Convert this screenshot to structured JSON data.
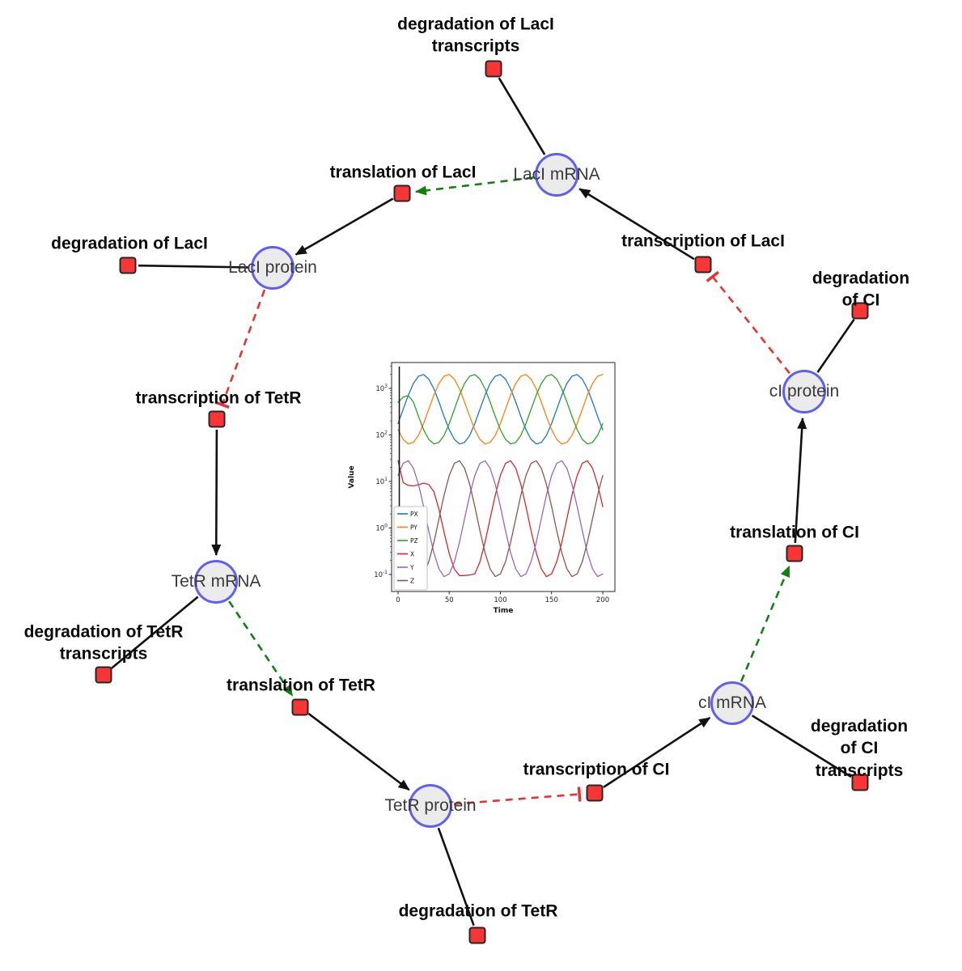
{
  "diagram": {
    "species": [
      {
        "id": "laci_mrna",
        "label": "LacI mRNA"
      },
      {
        "id": "laci_protein",
        "label": "LacI protein"
      },
      {
        "id": "tetr_mrna",
        "label": "TetR mRNA"
      },
      {
        "id": "tetr_protein",
        "label": "TetR protein"
      },
      {
        "id": "ci_mrna",
        "label": "cI mRNA"
      },
      {
        "id": "ci_protein",
        "label": "cI protein"
      }
    ],
    "reactions": [
      {
        "id": "deg_laci_tx",
        "label": "degradation of LacI\ntranscripts"
      },
      {
        "id": "transl_laci",
        "label": "translation of LacI"
      },
      {
        "id": "deg_laci",
        "label": "degradation of LacI"
      },
      {
        "id": "txn_laci",
        "label": "transcription of LacI"
      },
      {
        "id": "deg_ci",
        "label": "degradation of CI"
      },
      {
        "id": "txn_tetr",
        "label": "transcription of TetR"
      },
      {
        "id": "transl_ci",
        "label": "translation of CI"
      },
      {
        "id": "deg_tetr_tx",
        "label": "degradation of TetR\ntranscripts"
      },
      {
        "id": "transl_tetr",
        "label": "translation of TetR"
      },
      {
        "id": "txn_ci",
        "label": "transcription of CI"
      },
      {
        "id": "deg_ci_tx",
        "label": "degradation of CI\ntranscripts"
      },
      {
        "id": "deg_tetr",
        "label": "degradation of TetR"
      }
    ],
    "edges": [
      {
        "from": "laci_mrna",
        "to": "deg_laci_tx",
        "type": "consumption"
      },
      {
        "from": "laci_mrna",
        "to": "transl_laci",
        "type": "modifier"
      },
      {
        "from": "transl_laci",
        "to": "laci_protein",
        "type": "production"
      },
      {
        "from": "laci_protein",
        "to": "deg_laci",
        "type": "consumption"
      },
      {
        "from": "laci_protein",
        "to": "txn_tetr",
        "type": "inhibition"
      },
      {
        "from": "txn_tetr",
        "to": "tetr_mrna",
        "type": "production"
      },
      {
        "from": "tetr_mrna",
        "to": "deg_tetr_tx",
        "type": "consumption"
      },
      {
        "from": "tetr_mrna",
        "to": "transl_tetr",
        "type": "modifier"
      },
      {
        "from": "transl_tetr",
        "to": "tetr_protein",
        "type": "production"
      },
      {
        "from": "tetr_protein",
        "to": "deg_tetr",
        "type": "consumption"
      },
      {
        "from": "tetr_protein",
        "to": "txn_ci",
        "type": "inhibition"
      },
      {
        "from": "txn_ci",
        "to": "ci_mrna",
        "type": "production"
      },
      {
        "from": "ci_mrna",
        "to": "deg_ci_tx",
        "type": "consumption"
      },
      {
        "from": "ci_mrna",
        "to": "transl_ci",
        "type": "modifier"
      },
      {
        "from": "transl_ci",
        "to": "ci_protein",
        "type": "production"
      },
      {
        "from": "ci_protein",
        "to": "deg_ci",
        "type": "consumption"
      },
      {
        "from": "ci_protein",
        "to": "txn_laci",
        "type": "inhibition"
      },
      {
        "from": "txn_laci",
        "to": "laci_mrna",
        "type": "production"
      }
    ],
    "colors": {
      "species_fill": "#ebebeb",
      "species_stroke": "#6060ef",
      "reaction_fill": "#fa3535",
      "reaction_stroke": "#262626",
      "edge": "#111111",
      "modifier": "#157f15",
      "inhibition": "#e23434"
    }
  },
  "chart_data": {
    "type": "line",
    "title": "",
    "xlabel": "Time",
    "ylabel": "Value",
    "xlim": [
      0,
      200
    ],
    "ylog": true,
    "x_ticks": [
      0,
      50,
      100,
      150,
      200
    ],
    "y_ticks": [
      "10^-1",
      "10^0",
      "10^1",
      "10^2",
      "10^3"
    ],
    "legend_position": "lower left",
    "vline_x": 1.2,
    "x": [
      0,
      5,
      10,
      15,
      20,
      25,
      30,
      35,
      40,
      45,
      50,
      55,
      60,
      65,
      70,
      75,
      80,
      85,
      90,
      95,
      100,
      105,
      110,
      115,
      120,
      125,
      130,
      135,
      140,
      145,
      150,
      155,
      160,
      165,
      170,
      175,
      180,
      185,
      190,
      195,
      200
    ],
    "series": [
      {
        "name": "PX",
        "color": "#1f77b4",
        "values": [
          176,
          355,
          716,
          1279,
          1832,
          1977,
          1584,
          979,
          508,
          248,
          129,
          80,
          64,
          69,
          98,
          176,
          355,
          716,
          1279,
          1832,
          1977,
          1584,
          979,
          508,
          248,
          129,
          80,
          64,
          69,
          98,
          176,
          355,
          716,
          1279,
          1832,
          1977,
          1584,
          979,
          508,
          248,
          129
        ]
      },
      {
        "name": "PY",
        "color": "#ff7f0e",
        "values": [
          129,
          80,
          64,
          69,
          98,
          176,
          355,
          716,
          1279,
          1832,
          1977,
          1584,
          979,
          508,
          248,
          129,
          80,
          64,
          69,
          98,
          176,
          355,
          716,
          1279,
          1832,
          1977,
          1584,
          979,
          508,
          248,
          129,
          80,
          64,
          69,
          98,
          176,
          355,
          716,
          1279,
          1832,
          1977
        ]
      },
      {
        "name": "PZ",
        "color": "#2ca02c",
        "values": [
          500,
          650,
          700,
          508,
          248,
          129,
          80,
          64,
          69,
          98,
          176,
          355,
          716,
          1279,
          1832,
          1977,
          1584,
          979,
          508,
          248,
          129,
          80,
          64,
          69,
          98,
          176,
          355,
          716,
          1279,
          1832,
          1977,
          1584,
          979,
          508,
          248,
          129,
          80,
          64,
          69,
          98,
          176
        ]
      },
      {
        "name": "X",
        "color": "#d62728",
        "values": [
          28,
          9.5,
          8.2,
          8,
          8.5,
          9.2,
          8.6,
          6,
          2.5,
          0.8,
          0.28,
          0.13,
          0.095,
          0.095,
          0.098,
          0.103,
          0.187,
          0.491,
          1.59,
          5.12,
          13.5,
          24.5,
          27.8,
          19.2,
          8.61,
          2.88,
          0.871,
          0.292,
          0.131,
          0.09,
          0.103,
          0.187,
          0.491,
          1.59,
          5.12,
          13.5,
          24.5,
          27.8,
          19.2,
          8.61,
          2.88
        ]
      },
      {
        "name": "Y",
        "color": "#9467bd",
        "values": [
          13.5,
          24.5,
          27.8,
          19.2,
          8.61,
          2.88,
          0.871,
          0.292,
          0.131,
          0.09,
          0.103,
          0.187,
          0.491,
          1.59,
          5.12,
          13.5,
          24.5,
          27.8,
          19.2,
          8.61,
          2.88,
          0.871,
          0.292,
          0.131,
          0.09,
          0.103,
          0.187,
          0.491,
          1.59,
          5.12,
          13.5,
          24.5,
          27.8,
          19.2,
          8.61,
          2.88,
          0.871,
          0.292,
          0.131,
          0.09,
          0.103
        ]
      },
      {
        "name": "Z",
        "color": "#8c564b",
        "values": [
          2.88,
          0.871,
          0.292,
          0.131,
          0.09,
          0.103,
          0.187,
          0.491,
          1.59,
          5.12,
          13.5,
          24.5,
          27.8,
          19.2,
          8.61,
          2.88,
          0.871,
          0.292,
          0.131,
          0.09,
          0.103,
          0.187,
          0.491,
          1.59,
          5.12,
          13.5,
          24.5,
          27.8,
          19.2,
          8.61,
          2.88,
          0.871,
          0.292,
          0.131,
          0.09,
          0.103,
          0.187,
          0.491,
          1.59,
          5.12,
          13.5
        ]
      }
    ]
  }
}
